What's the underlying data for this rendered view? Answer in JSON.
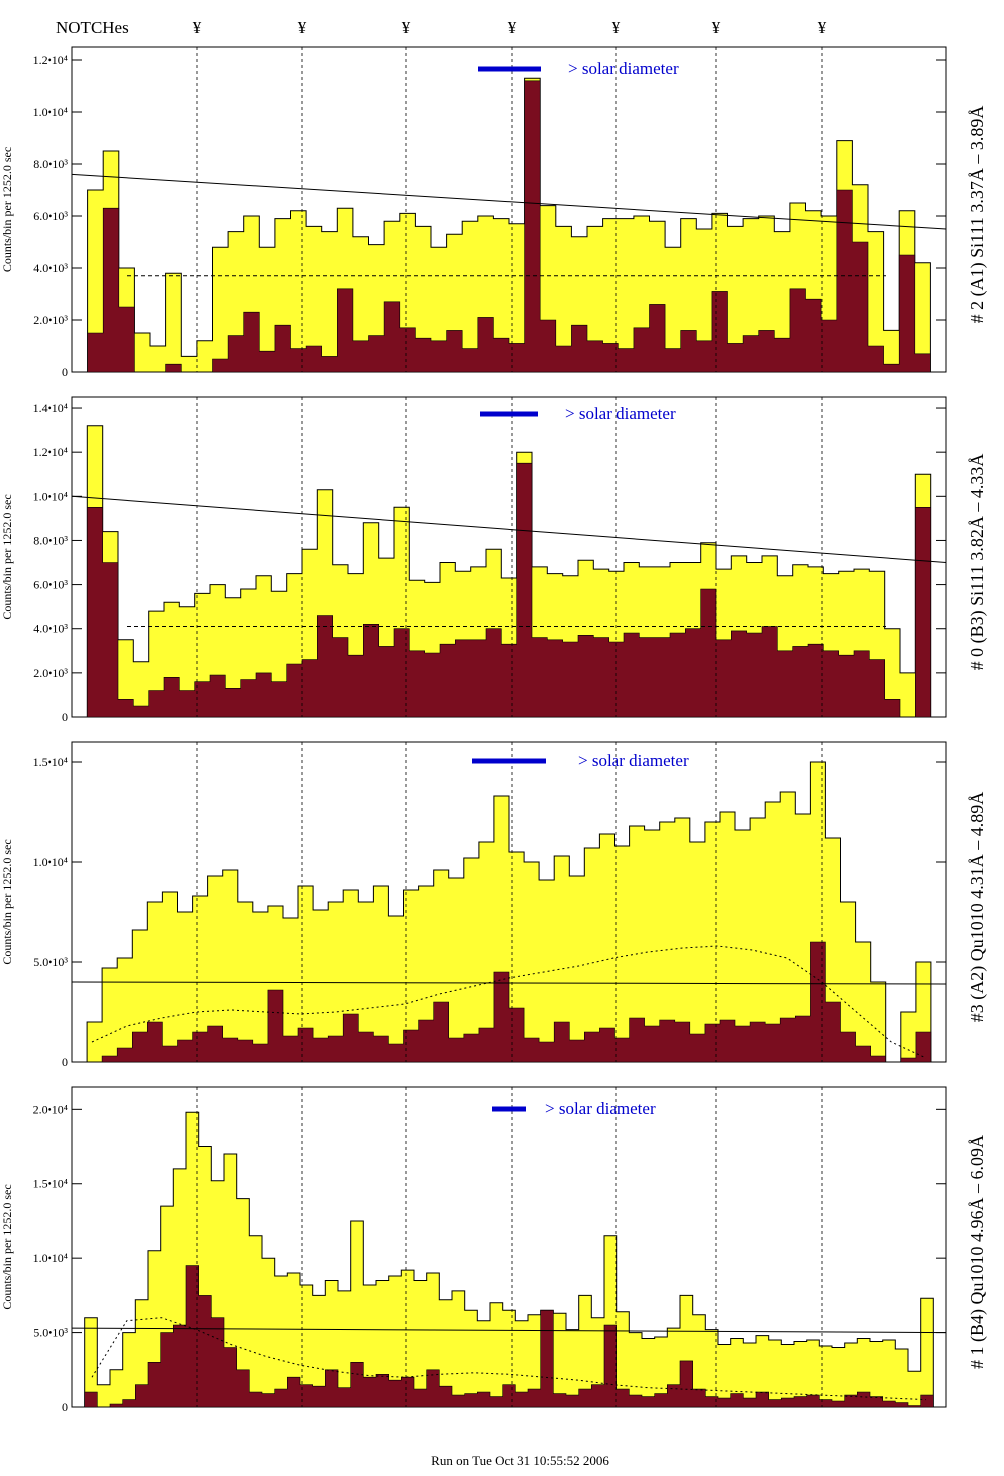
{
  "header": {
    "notches_label": "NOTCHes",
    "notch_symbol": "¥",
    "notch_positions": [
      197,
      302,
      406,
      512,
      616,
      716,
      822
    ]
  },
  "footer": {
    "run_text": "Run on Tue Oct 31 10:55:52 2006"
  },
  "colors": {
    "fill": "#ffff33",
    "dark": "#7a0d1f",
    "accent": "#0000cc",
    "line": "#000000"
  },
  "chart_data": [
    {
      "type": "area",
      "id": "A1",
      "side_label": "# 2 (A1) Si111  3.37Å – 3.89Å",
      "ylabel": "Counts/bin per   1252.0 sec",
      "ylim": [
        0,
        12500
      ],
      "ytick_labels": [
        "0",
        "2.0•10³",
        "4.0•10³",
        "6.0•10³",
        "8.0•10³",
        "1.0•10⁴",
        "1.2•10⁴"
      ],
      "ytick_values": [
        0,
        2000,
        4000,
        6000,
        8000,
        10000,
        12000
      ],
      "legend_text": "> solar diameter",
      "upper_envelope": [
        0,
        7000,
        8500,
        4000,
        1500,
        1000,
        3800,
        600,
        1200,
        4800,
        5400,
        6000,
        4800,
        5900,
        6200,
        5600,
        5400,
        6300,
        5200,
        4900,
        5800,
        6100,
        5600,
        4800,
        5300,
        5800,
        6000,
        5900,
        5700,
        11300,
        6400,
        5600,
        5200,
        5600,
        5900,
        5900,
        6000,
        5800,
        4800,
        5900,
        5500,
        6100,
        5600,
        5900,
        6000,
        5400,
        6500,
        6200,
        6000,
        8900,
        7200,
        5400,
        1600,
        6200,
        4200,
        0
      ],
      "lower_envelope": [
        0,
        1500,
        6300,
        2500,
        0,
        0,
        300,
        0,
        0,
        500,
        1400,
        2300,
        800,
        1800,
        900,
        1000,
        600,
        3200,
        1200,
        1400,
        2700,
        1700,
        1300,
        1200,
        1600,
        900,
        2100,
        1300,
        1100,
        11200,
        2000,
        1000,
        1800,
        1200,
        1100,
        900,
        1700,
        2600,
        900,
        1600,
        1200,
        3100,
        1100,
        1400,
        1600,
        1300,
        3200,
        2800,
        2000,
        7000,
        5000,
        1000,
        300,
        4500,
        700,
        0
      ],
      "trend_line": [
        7600,
        5500
      ],
      "dashed_level": 3700
    },
    {
      "type": "area",
      "id": "B3",
      "side_label": "# 0 (B3) Si111  3.82Å – 4.33Å",
      "ylabel": "Counts/bin per   1252.0 sec",
      "ylim": [
        0,
        14500
      ],
      "ytick_labels": [
        "0",
        "2.0•10³",
        "4.0•10³",
        "6.0•10³",
        "8.0•10³",
        "1.0•10⁴",
        "1.2•10⁴",
        "1.4•10⁴"
      ],
      "ytick_values": [
        0,
        2000,
        4000,
        6000,
        8000,
        10000,
        12000,
        14000
      ],
      "legend_text": "> solar diameter",
      "upper_envelope": [
        0,
        13200,
        8400,
        3500,
        2500,
        4800,
        5200,
        5000,
        5600,
        6000,
        5400,
        5800,
        6400,
        5700,
        6500,
        7600,
        10300,
        6900,
        6500,
        8800,
        7200,
        9500,
        6200,
        6100,
        7000,
        6600,
        6800,
        7600,
        6300,
        12000,
        6800,
        6500,
        6400,
        7100,
        6700,
        6600,
        7000,
        6800,
        6800,
        7000,
        7000,
        7900,
        6700,
        7300,
        7000,
        7300,
        6400,
        6900,
        6800,
        6500,
        6600,
        6700,
        6600,
        4000,
        2000,
        11000,
        0
      ],
      "lower_envelope": [
        0,
        9500,
        7000,
        800,
        500,
        1200,
        1800,
        1200,
        1600,
        1900,
        1300,
        1700,
        2000,
        1600,
        2400,
        2600,
        4600,
        3600,
        2800,
        4200,
        3200,
        4000,
        3000,
        2900,
        3300,
        3500,
        3500,
        4000,
        3300,
        11500,
        3600,
        3500,
        3400,
        3700,
        3600,
        3400,
        3800,
        3600,
        3600,
        3800,
        4000,
        5800,
        3500,
        3900,
        3800,
        4100,
        3000,
        3200,
        3300,
        3000,
        2800,
        3000,
        2600,
        800,
        0,
        9500,
        0
      ],
      "trend_line": [
        10000,
        7000
      ],
      "dashed_level": 4100
    },
    {
      "type": "area",
      "id": "A2",
      "side_label": "#3 (A2) Qu1010  4.31Å – 4.89Å",
      "ylabel": "Counts/bin per   1252.0 sec",
      "ylim": [
        0,
        16000
      ],
      "ytick_labels": [
        "0",
        "5.0•10³",
        "1.0•10⁴",
        "1.5•10⁴"
      ],
      "ytick_values": [
        0,
        5000,
        10000,
        15000
      ],
      "legend_text": "> solar diameter",
      "upper_envelope": [
        0,
        2000,
        4700,
        5200,
        6600,
        8000,
        8500,
        7500,
        8300,
        9300,
        9600,
        8000,
        7500,
        7800,
        7200,
        8800,
        7600,
        8000,
        8600,
        8000,
        8800,
        7300,
        8600,
        8800,
        9600,
        9200,
        10200,
        11000,
        13300,
        10500,
        10000,
        9100,
        10300,
        9300,
        10700,
        11400,
        10800,
        11800,
        11600,
        12000,
        12200,
        11000,
        12000,
        12500,
        11600,
        12200,
        13000,
        13500,
        12400,
        15000,
        11200,
        8000,
        6000,
        4000,
        0,
        2500,
        5000,
        0
      ],
      "lower_envelope": [
        0,
        0,
        300,
        700,
        1500,
        2000,
        800,
        1100,
        1500,
        1800,
        1200,
        1100,
        900,
        3600,
        1300,
        1700,
        1200,
        1300,
        2400,
        1500,
        1300,
        900,
        1600,
        2100,
        3000,
        1200,
        1400,
        1700,
        4500,
        2700,
        1200,
        1000,
        2000,
        1100,
        1500,
        1700,
        1200,
        2200,
        1800,
        2100,
        2000,
        1400,
        1900,
        2100,
        1800,
        2000,
        1900,
        2200,
        2300,
        6000,
        3000,
        1500,
        800,
        300,
        0,
        200,
        1500,
        0
      ],
      "trend_line": [
        4000,
        3900
      ],
      "dotted_curve": [
        1000,
        1800,
        2200,
        2500,
        2600,
        2500,
        2400,
        2500,
        2700,
        2900,
        3400,
        3800,
        4200,
        4500,
        4800,
        5200,
        5500,
        5700,
        5800,
        5600,
        5200,
        4000,
        2500,
        1000,
        200
      ]
    },
    {
      "type": "area",
      "id": "B4",
      "side_label": "# 1 (B4) Qu1010 4.96Å – 6.09Å",
      "ylabel": "Counts/bin per   1252.0 sec",
      "ylim": [
        0,
        21500
      ],
      "ytick_labels": [
        "0",
        "5.0•10³",
        "1.0•10⁴",
        "1.5•10⁴",
        "2.0•10⁴"
      ],
      "ytick_values": [
        0,
        5000,
        10000,
        15000,
        20000
      ],
      "legend_text": "> solar diameter",
      "upper_envelope": [
        0,
        6000,
        1500,
        2500,
        5000,
        7200,
        10500,
        13500,
        16000,
        19800,
        17500,
        15200,
        17000,
        14000,
        11500,
        10000,
        8800,
        9000,
        8200,
        7500,
        8500,
        7800,
        12500,
        8200,
        8500,
        8800,
        9200,
        8500,
        9000,
        7200,
        7800,
        6500,
        5800,
        7000,
        6500,
        5800,
        6200,
        6500,
        6300,
        5200,
        7500,
        6000,
        11500,
        6400,
        5000,
        4600,
        4700,
        5300,
        7500,
        6200,
        5200,
        4200,
        4600,
        4300,
        4800,
        4500,
        4200,
        4400,
        4500,
        4100,
        4000,
        4300,
        4600,
        4400,
        4500,
        3900,
        2400,
        7300,
        0
      ],
      "lower_envelope": [
        0,
        1000,
        0,
        200,
        500,
        1500,
        3000,
        5000,
        5500,
        9500,
        7500,
        6000,
        4000,
        2500,
        1000,
        900,
        1200,
        2000,
        1500,
        1400,
        2500,
        1300,
        3000,
        2000,
        2200,
        1800,
        2000,
        1200,
        2500,
        1400,
        800,
        900,
        1000,
        700,
        1500,
        1000,
        1200,
        6500,
        900,
        800,
        1200,
        1500,
        5500,
        1200,
        800,
        700,
        900,
        1500,
        3100,
        1200,
        700,
        600,
        900,
        600,
        1000,
        500,
        600,
        700,
        800,
        500,
        400,
        800,
        1000,
        700,
        400,
        300,
        100,
        800,
        0
      ],
      "trend_line": [
        5300,
        5000
      ],
      "dotted_curve": [
        2000,
        5800,
        6000,
        5200,
        4200,
        3400,
        2800,
        2400,
        2100,
        2000,
        2200,
        2300,
        2200,
        2000,
        1800,
        1500,
        1300,
        1200,
        1100,
        1000,
        900,
        800,
        700,
        600,
        500
      ]
    }
  ]
}
